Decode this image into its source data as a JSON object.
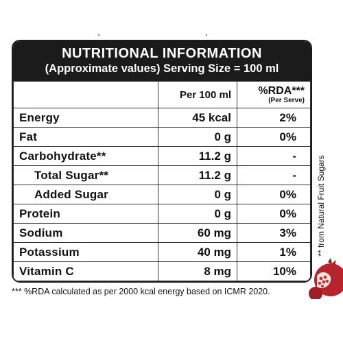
{
  "title": "NUTRITIONAL INFORMATION",
  "subtitle": "(Approximate values) Serving Size = 100 ml",
  "columns": {
    "per": "Per 100 ml",
    "rda": "%RDA***",
    "rda_sub": "(Per Serve)"
  },
  "rows": [
    {
      "name": "Energy",
      "per": "45 kcal",
      "rda": "2%"
    },
    {
      "name": "Fat",
      "per": "0 g",
      "rda": "0%"
    },
    {
      "name": "Carbohydrate**",
      "per": "11.2 g",
      "rda": "-"
    },
    {
      "name": "Total Sugar**",
      "per": "11.2 g",
      "rda": "-"
    },
    {
      "name": "Added Sugar",
      "per": "0 g",
      "rda": "0%"
    },
    {
      "name": "Protein",
      "per": "0 g",
      "rda": "0%"
    },
    {
      "name": "Sodium",
      "per": "60 mg",
      "rda": "3%"
    },
    {
      "name": "Potassium",
      "per": "40 mg",
      "rda": "1%"
    },
    {
      "name": "Vitamin C",
      "per": "8 mg",
      "rda": "10%"
    }
  ],
  "footnote": "*** %RDA calculated as per 2000 kcal energy based on ICMR 2020.",
  "side_note": "** from Natural Fruit Sugars",
  "colors": {
    "header_bg": "#1b1b1b",
    "fruit": "#b8242e"
  }
}
